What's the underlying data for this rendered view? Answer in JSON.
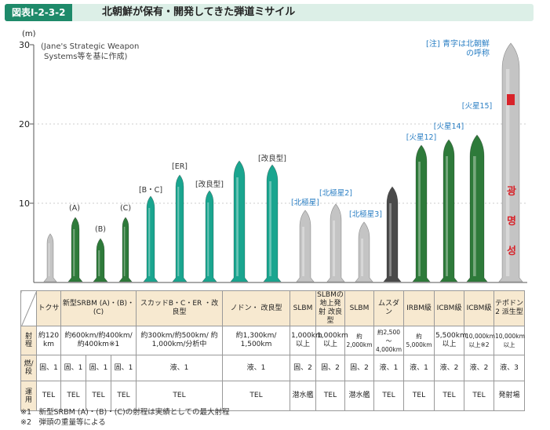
{
  "header": {
    "figure_label": "図表Ⅰ-2-3-2",
    "title": "北朝鮮が保有・開発してきた弾道ミサイル"
  },
  "axis": {
    "unit": "(m)",
    "ticks": [
      "30",
      "20",
      "10"
    ]
  },
  "source_note": [
    "(Jane's Strategic Weapon",
    "Systems等を基に作成)"
  ],
  "top_note": [
    "[注] 青字は北朝鮮",
    "の呼称"
  ],
  "missile_labels": [
    {
      "text": "(A)",
      "color": "dark"
    },
    {
      "text": "(B)",
      "color": "dark"
    },
    {
      "text": "(C)",
      "color": "dark"
    },
    {
      "text": "[B・C]",
      "color": "dark"
    },
    {
      "text": "[ER]",
      "color": "dark"
    },
    {
      "text": "[改良型]",
      "color": "dark"
    },
    {
      "text": "[改良型]",
      "color": "dark"
    },
    {
      "text": "[北極星]",
      "color": "blue"
    },
    {
      "text": "[北極星2]",
      "color": "blue"
    },
    {
      "text": "[北極星3]",
      "color": "blue"
    },
    {
      "text": "[火星12]",
      "color": "blue"
    },
    {
      "text": "[火星14]",
      "color": "blue"
    },
    {
      "text": "[火星15]",
      "color": "blue"
    }
  ],
  "rocket_text": [
    "광",
    "명",
    "성"
  ],
  "colors": {
    "green": "#2e7a3a",
    "teal": "#1aa58f",
    "gray": "#a8a8a8",
    "dark": "#4a4a4a"
  },
  "table": {
    "header": [
      "トクサ",
      "新型SRBM (A)・(B)・(C)",
      "スカッドB・C・ER ・改良型",
      "ノドン・ 改良型",
      "SLBM",
      "SLBMの 地上発射 改良型",
      "SLBM",
      "ムスダン",
      "IRBM級",
      "ICBM級",
      "ICBM級",
      "テポドン2 派生型"
    ],
    "rows": [
      {
        "label": "射程",
        "cells": [
          "約120 km",
          "約600km/約400km/ 約400km※1",
          "約300km/約500km/ 約1,000km/分析中",
          "約1,300km/ 1,500km",
          "1,000km 以上",
          "1,000km 以上",
          "約2,000km",
          "約2,500～ 4,000km",
          "約5,000km",
          "5,500km 以上",
          "10,000km 以上※2",
          "10,000km 以上"
        ]
      },
      {
        "label": "燃/段",
        "cells": [
          "固、1",
          "固、1",
          "固、1",
          "固、1",
          "液、1",
          "液、1",
          "固、2",
          "固、2",
          "固、2",
          "液、1",
          "液、1",
          "液、2",
          "液、2",
          "液、3"
        ]
      },
      {
        "label": "運用",
        "cells": [
          "TEL",
          "TEL",
          "TEL",
          "TEL",
          "TEL",
          "TEL",
          "潜水艦",
          "TEL",
          "潜水艦",
          "TEL",
          "TEL",
          "TEL",
          "TEL",
          "発射場"
        ]
      }
    ]
  },
  "footnotes": [
    "※1　新型SRBM (A)・(B)・(C)の射程は実績としての最大射程",
    "※2　弾頭の重量等による"
  ]
}
